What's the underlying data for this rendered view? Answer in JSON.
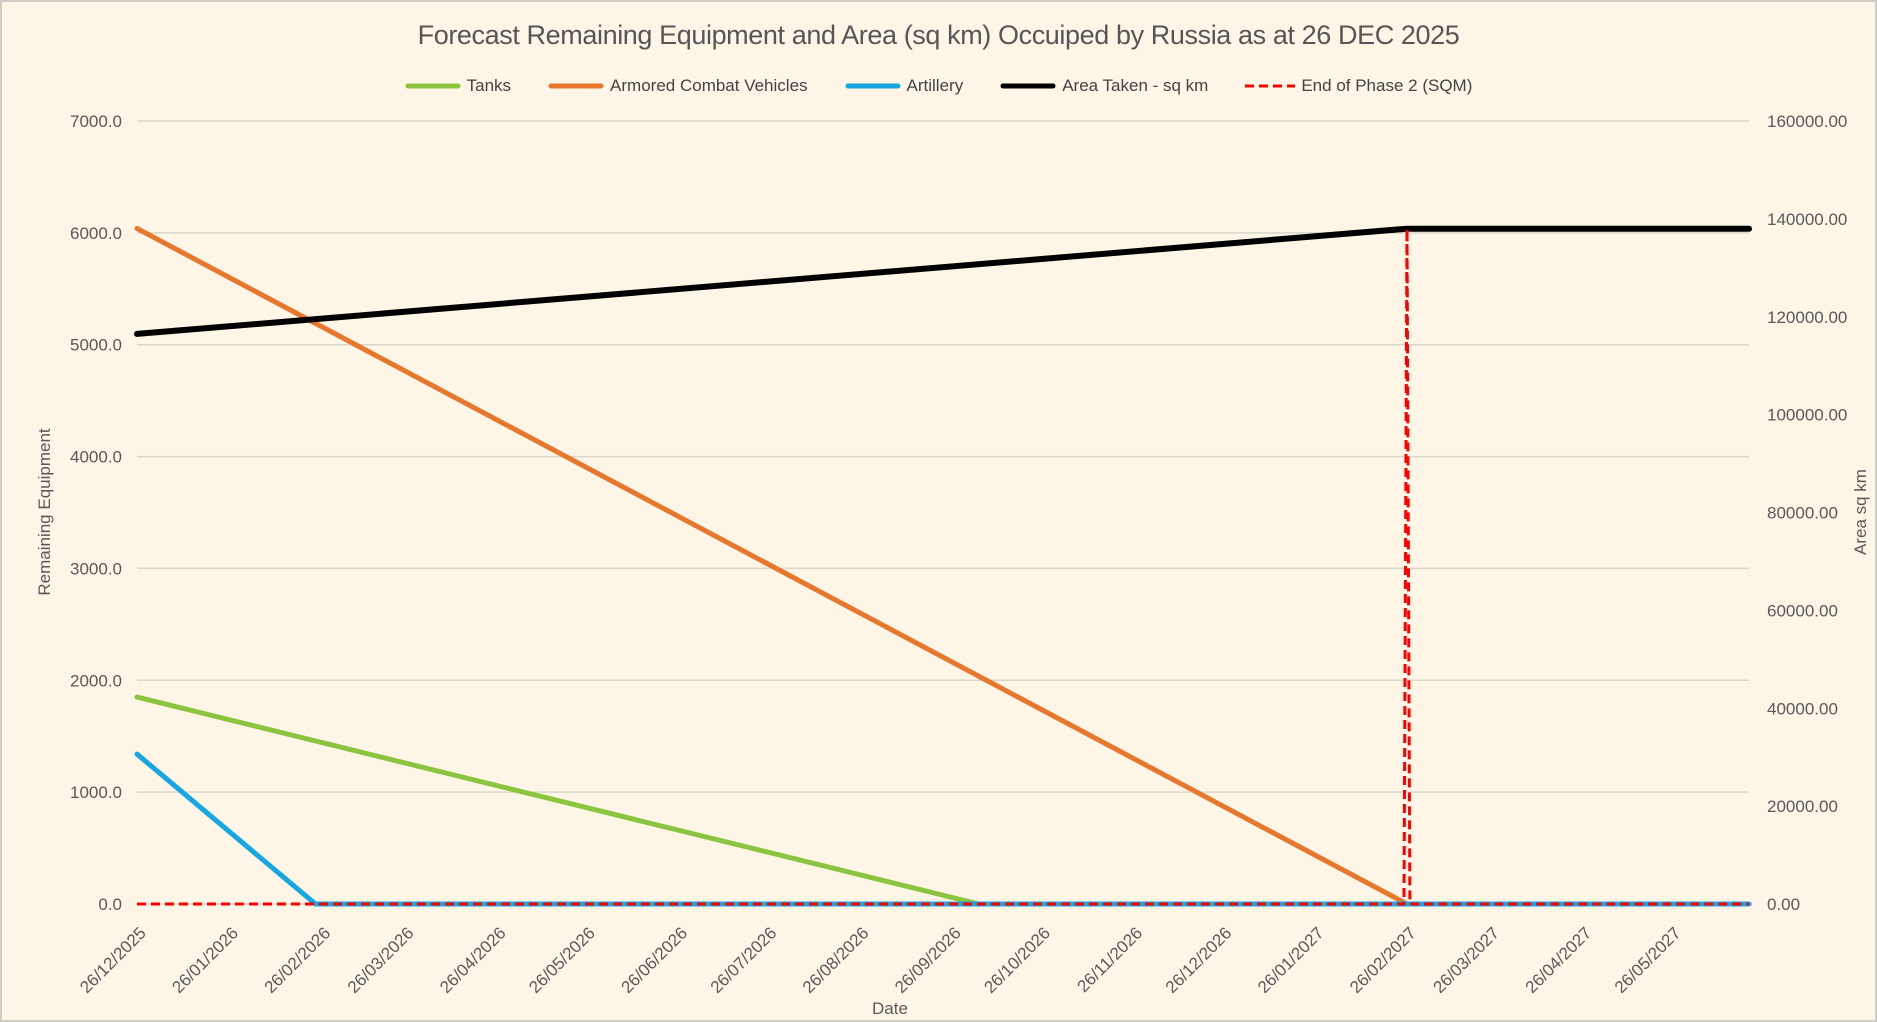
{
  "title": "Forecast Remaining Equipment and Area (sq km) Occuiped by Russia as at 26 DEC 2025",
  "colors": {
    "background": "#FDF6E7",
    "border": "#CFCDC3",
    "grid": "#DAD7CC",
    "title_text": "#565656",
    "axis_text": "#595959",
    "legend_text": "#434343",
    "tanks": "#8BC53F",
    "armored_combat_vehicles": "#E8772E",
    "artillery": "#16A6E1",
    "area_taken": "#000000",
    "end_of_phase_2": "#FF0000"
  },
  "legend": {
    "position": "top",
    "items": [
      {
        "label": "Tanks",
        "color": "#8BC53F",
        "dash": false
      },
      {
        "label": "Armored Combat Vehicles",
        "color": "#E8772E",
        "dash": false
      },
      {
        "label": "Artillery",
        "color": "#16A6E1",
        "dash": false
      },
      {
        "label": "Area Taken - sq km",
        "color": "#000000",
        "dash": false
      },
      {
        "label": "End of Phase 2 (SQM)",
        "color": "#FF0000",
        "dash": true
      }
    ]
  },
  "chart_data": {
    "type": "line",
    "title": "Forecast Remaining Equipment and Area (sq km) Occuiped by Russia as at 26 DEC 2025",
    "grid": "horizontal",
    "legend_position": "top",
    "x_axis": {
      "title": "Date",
      "labels": [
        "26/12/2025",
        "26/01/2026",
        "26/02/2026",
        "26/03/2026",
        "26/04/2026",
        "26/05/2026",
        "26/06/2026",
        "26/07/2026",
        "26/08/2026",
        "26/09/2026",
        "26/10/2026",
        "26/11/2026",
        "26/12/2026",
        "26/01/2027",
        "26/02/2027",
        "26/03/2027",
        "26/04/2027",
        "26/05/2027"
      ],
      "label_days": [
        0,
        31,
        62,
        90,
        121,
        151,
        182,
        212,
        243,
        274,
        304,
        335,
        365,
        396,
        427,
        455,
        486,
        516
      ],
      "max_day": 542
    },
    "y_left": {
      "title": "Remaining Equipment",
      "min": 0,
      "max": 7000,
      "step": 1000,
      "ticks": [
        "0.0",
        "1000.0",
        "2000.0",
        "3000.0",
        "4000.0",
        "5000.0",
        "6000.0",
        "7000.0"
      ]
    },
    "y_right": {
      "title": "Area sq km",
      "min": 0,
      "max": 160000,
      "step": 20000,
      "ticks": [
        "0.00",
        "20000.00",
        "40000.00",
        "60000.00",
        "80000.00",
        "100000.00",
        "120000.00",
        "140000.00",
        "160000.00"
      ]
    },
    "series": [
      {
        "name": "Tanks",
        "axis": "left",
        "color": "#8BC53F",
        "width": 5,
        "dash": null,
        "points": [
          [
            0,
            1850
          ],
          [
            283,
            0
          ],
          [
            542,
            0
          ]
        ]
      },
      {
        "name": "Armored Combat Vehicles",
        "axis": "left",
        "color": "#E8772E",
        "width": 5,
        "dash": null,
        "points": [
          [
            0,
            6040
          ],
          [
            427,
            0
          ],
          [
            542,
            0
          ]
        ]
      },
      {
        "name": "Artillery",
        "axis": "left",
        "color": "#16A6E1",
        "width": 5,
        "dash": null,
        "points": [
          [
            0,
            1340
          ],
          [
            60,
            0
          ],
          [
            542,
            0
          ]
        ]
      },
      {
        "name": "Area Taken - sq km",
        "axis": "right",
        "color": "#000000",
        "width": 6,
        "dash": null,
        "points": [
          [
            0,
            116500
          ],
          [
            427,
            138000
          ],
          [
            542,
            138000
          ]
        ]
      },
      {
        "name": "End of Phase 2 (SQM)",
        "axis": "right",
        "color": "#FF0000",
        "width": 3,
        "dash": "9 5",
        "points": [
          [
            0,
            0
          ],
          [
            426,
            0
          ],
          [
            427,
            138000
          ],
          [
            428,
            0
          ],
          [
            542,
            0
          ]
        ]
      }
    ]
  }
}
